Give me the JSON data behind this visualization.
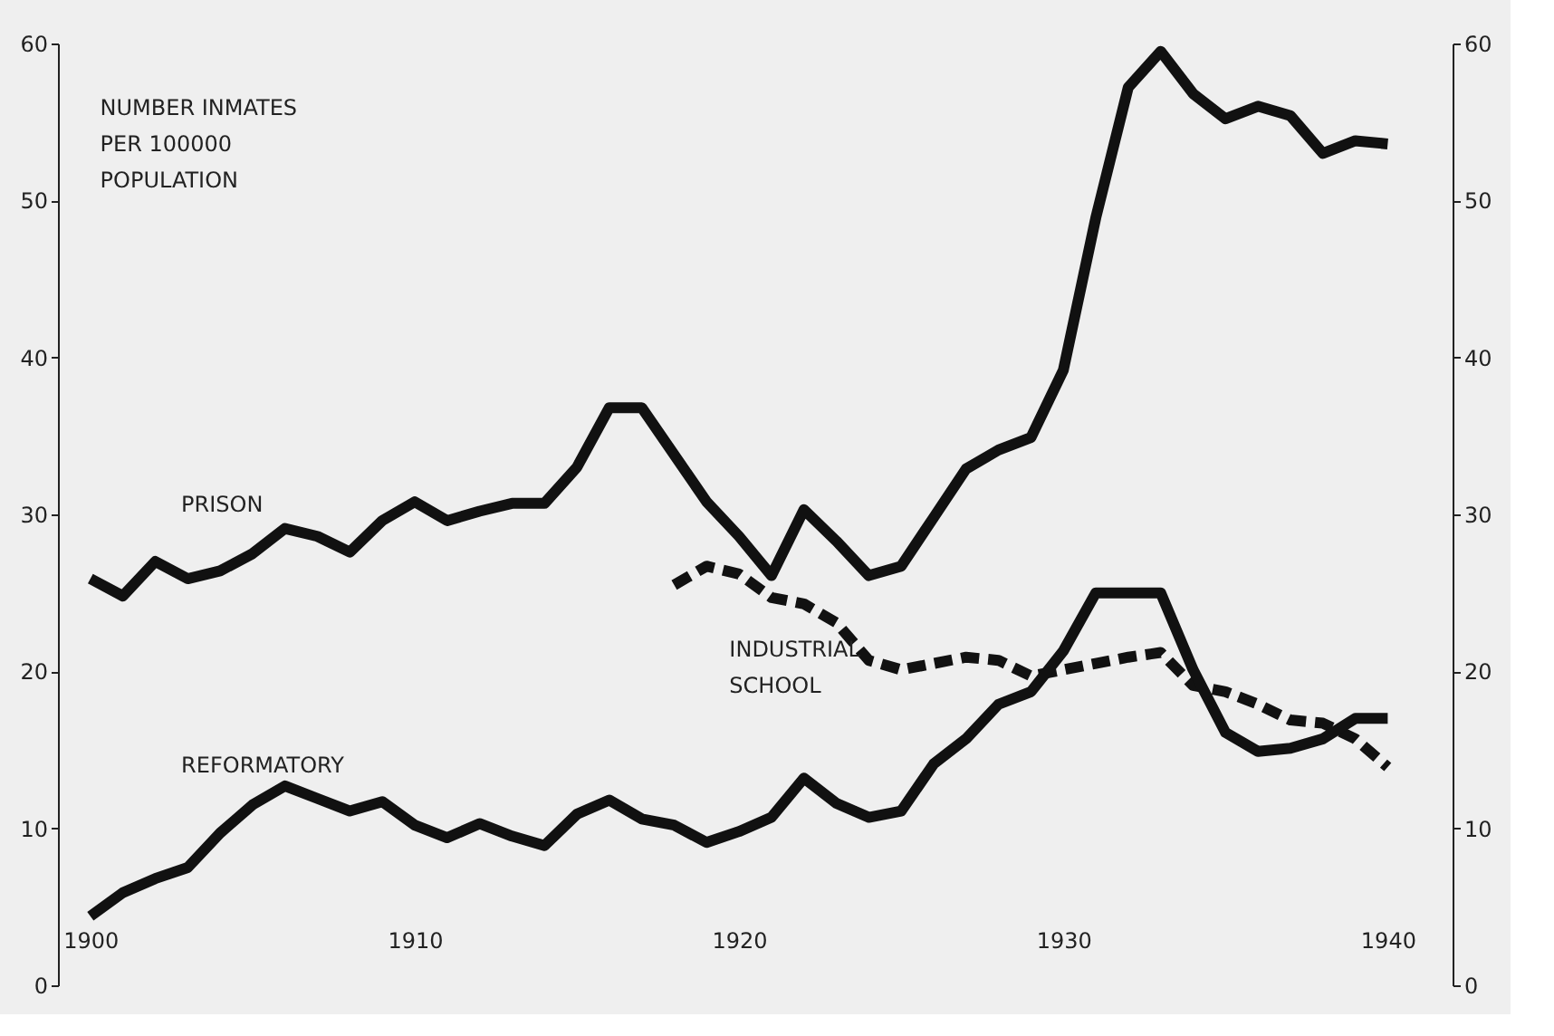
{
  "chart_data": {
    "type": "line",
    "ylabel": "NUMBER INMATES\nPER 100000\nPOPULATION",
    "x": [
      1900,
      1901,
      1902,
      1903,
      1904,
      1905,
      1906,
      1907,
      1908,
      1909,
      1910,
      1911,
      1912,
      1913,
      1914,
      1915,
      1916,
      1917,
      1918,
      1919,
      1920,
      1921,
      1922,
      1923,
      1924,
      1925,
      1926,
      1927,
      1928,
      1929,
      1930,
      1931,
      1932,
      1933,
      1934,
      1935,
      1936,
      1937,
      1938,
      1939,
      1940
    ],
    "series": [
      {
        "name": "PRISON",
        "color": "#111111",
        "line_style": "solid",
        "values": [
          25.9,
          24.8,
          27.0,
          25.9,
          26.4,
          27.5,
          29.1,
          28.6,
          27.6,
          29.6,
          30.8,
          29.6,
          30.2,
          30.7,
          30.7,
          33.0,
          36.8,
          36.8,
          33.8,
          30.8,
          28.6,
          26.1,
          30.3,
          28.3,
          26.1,
          26.7,
          29.8,
          32.9,
          34.1,
          34.9,
          39.2,
          48.9,
          57.2,
          59.5,
          56.8,
          55.2,
          56.0,
          55.4,
          53.0,
          53.8,
          53.6
        ]
      },
      {
        "name": "INDUSTRIAL\nSCHOOL",
        "color": "#111111",
        "line_style": "dashed",
        "values": [
          null,
          null,
          null,
          null,
          null,
          null,
          null,
          null,
          null,
          null,
          null,
          null,
          null,
          null,
          null,
          null,
          null,
          null,
          25.5,
          26.7,
          26.2,
          24.7,
          24.3,
          23.1,
          20.7,
          20.1,
          20.5,
          20.9,
          20.7,
          19.7,
          20.1,
          20.5,
          20.9,
          21.2,
          19.1,
          18.7,
          17.9,
          16.9,
          16.7,
          15.7,
          13.9
        ]
      },
      {
        "name": "REFORMATORY",
        "color": "#111111",
        "line_style": "solid",
        "values": [
          4.4,
          5.9,
          6.8,
          7.5,
          9.7,
          11.5,
          12.7,
          11.9,
          11.1,
          11.7,
          10.2,
          9.4,
          10.3,
          9.5,
          8.9,
          10.9,
          11.8,
          10.6,
          10.2,
          9.1,
          9.8,
          10.7,
          13.2,
          11.6,
          10.7,
          11.1,
          14.1,
          15.7,
          17.9,
          18.7,
          21.3,
          25.0,
          25.0,
          25.0,
          20.1,
          16.1,
          14.9,
          15.1,
          15.7,
          17.0,
          17.0
        ]
      }
    ],
    "xlim": [
      1899,
      1942
    ],
    "xticks": [
      1900,
      1910,
      1920,
      1930,
      1940
    ],
    "ylim": [
      0,
      60
    ],
    "yticks": [
      0,
      10,
      20,
      30,
      40,
      50,
      60
    ],
    "y2lim": [
      0,
      60
    ],
    "y2ticks": [
      0,
      10,
      20,
      30,
      40,
      50,
      60
    ],
    "grid": false,
    "legend": false,
    "marker": "none"
  }
}
